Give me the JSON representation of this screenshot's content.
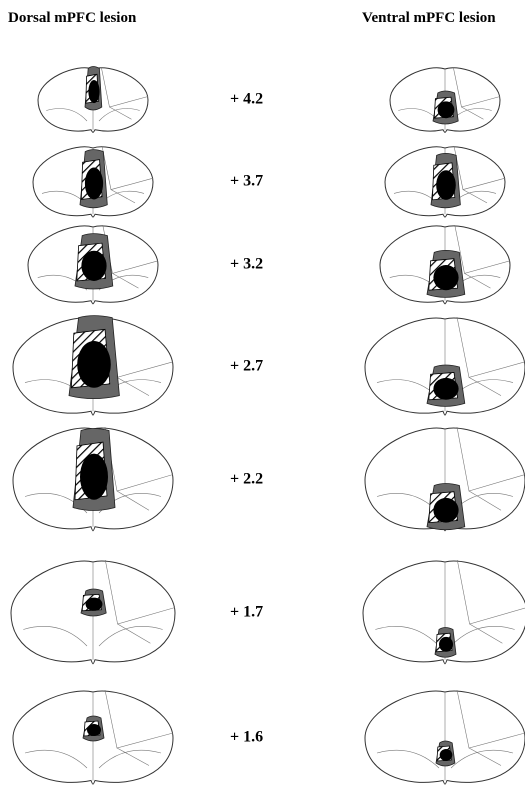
{
  "headers": [
    "Dorsal mPFC lesion",
    "Ventral mPFC lesion"
  ],
  "sections": [
    {
      "label": "+ 4.2"
    },
    {
      "label": "+ 3.7"
    },
    {
      "label": "+ 3.2"
    },
    {
      "label": "+ 2.7"
    },
    {
      "label": "+ 2.2"
    },
    {
      "label": "+ 1.7"
    },
    {
      "label": "+ 1.6"
    }
  ]
}
